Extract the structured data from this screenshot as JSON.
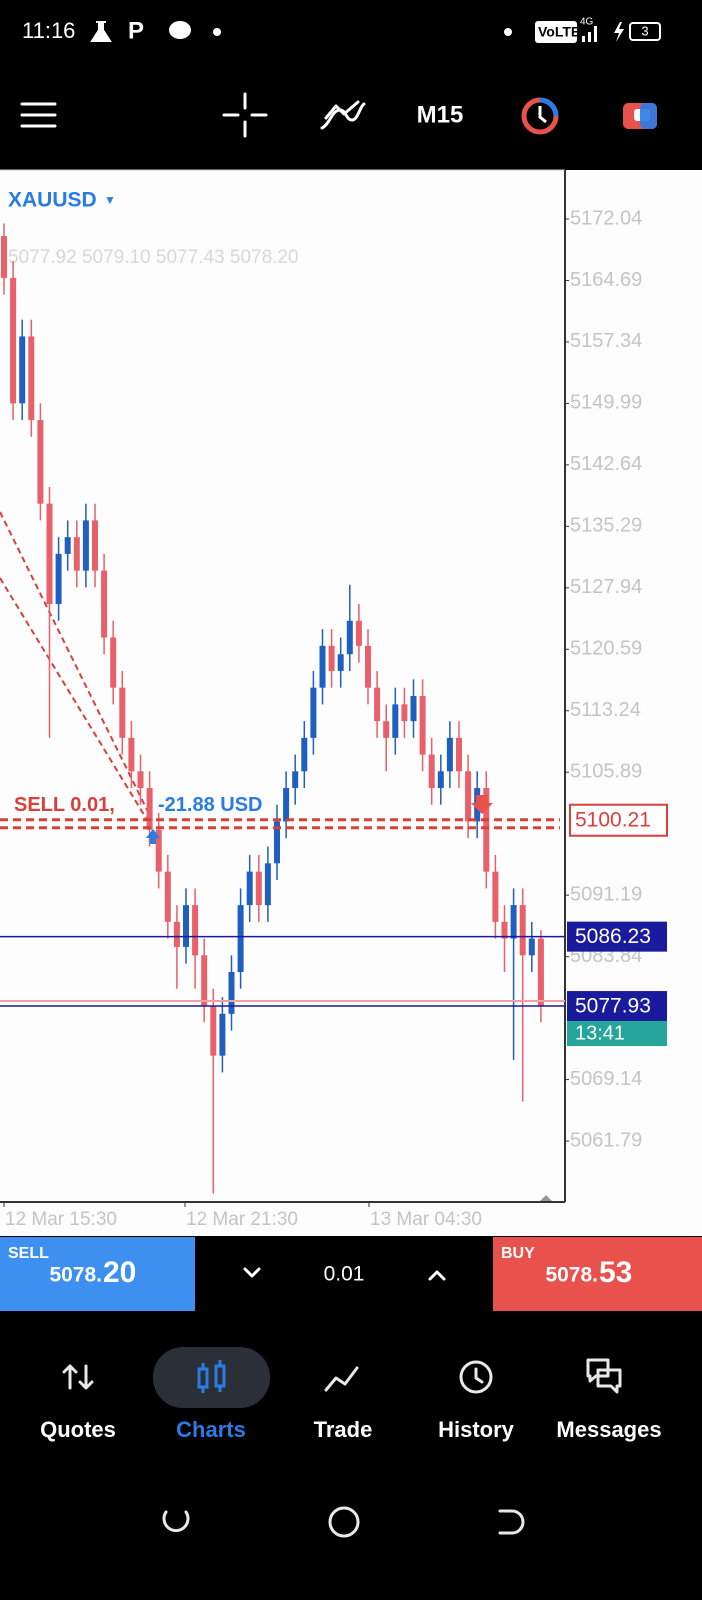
{
  "status_bar": {
    "time": "11:16",
    "network": "VoLTE",
    "generation": "4G",
    "battery": "3"
  },
  "toolbar": {
    "timeframe": "M15"
  },
  "chart_data": {
    "type": "candlestick",
    "symbol": "XAUUSD",
    "ohlc_text": "5077.92 5079.10 5077.43 5078.20",
    "open": [
      5170,
      5165,
      5150,
      5158,
      5148,
      5138,
      5126,
      5132,
      5134,
      5130,
      5136,
      5130,
      5122,
      5116,
      5110,
      5106,
      5104,
      5099,
      5094,
      5088,
      5085,
      5090,
      5084,
      5078,
      5072,
      5077,
      5082,
      5090,
      5094,
      5090,
      5095,
      5100,
      5104,
      5106,
      5110,
      5116,
      5121,
      5118,
      5120,
      5124,
      5121,
      5116,
      5112,
      5110,
      5114,
      5112,
      5115,
      5108,
      5104,
      5106,
      5110,
      5106,
      5100,
      5104,
      5094,
      5088,
      5086,
      5090,
      5084,
      5086
    ],
    "high": [
      5171.5,
      5167,
      5160,
      5160,
      5150,
      5140,
      5134,
      5136,
      5136,
      5138,
      5138,
      5132,
      5124,
      5118,
      5112,
      5108,
      5106,
      5101,
      5096,
      5090,
      5092,
      5092,
      5086,
      5080,
      5079,
      5084,
      5092,
      5096,
      5096,
      5097,
      5102,
      5106,
      5108,
      5112,
      5118,
      5123,
      5123,
      5122,
      5128.3,
      5126,
      5123,
      5118,
      5114,
      5116,
      5116,
      5117,
      5117,
      5110,
      5108,
      5112,
      5112,
      5108,
      5106,
      5106,
      5096,
      5090,
      5092,
      5092,
      5088,
      5087
    ],
    "low": [
      5163,
      5148,
      5148,
      5146,
      5136,
      5110,
      5124,
      5130,
      5128,
      5128,
      5128,
      5120,
      5114,
      5108,
      5104,
      5102,
      5097,
      5092,
      5086,
      5080,
      5083,
      5080,
      5076,
      5055.5,
      5070,
      5075,
      5080,
      5088,
      5088,
      5088,
      5093,
      5098,
      5102,
      5104,
      5108,
      5114,
      5116,
      5116,
      5118,
      5119,
      5114,
      5110,
      5106,
      5108,
      5110,
      5110,
      5106,
      5102,
      5102,
      5104,
      5104,
      5098,
      5098,
      5092,
      5086,
      5082,
      5071.5,
      5066.5,
      5082,
      5076
    ],
    "close": [
      5165,
      5150,
      5158,
      5148,
      5138,
      5126,
      5132,
      5134,
      5130,
      5136,
      5130,
      5122,
      5116,
      5110,
      5106,
      5104,
      5099,
      5094,
      5088,
      5085,
      5090,
      5084,
      5078,
      5072,
      5077,
      5082,
      5090,
      5094,
      5090,
      5095,
      5100,
      5104,
      5106,
      5110,
      5116,
      5121,
      5118,
      5120,
      5124,
      5121,
      5116,
      5112,
      5110,
      5114,
      5112,
      5115,
      5108,
      5104,
      5106,
      5110,
      5106,
      5100,
      5104,
      5094,
      5088,
      5086,
      5090,
      5084,
      5086,
      5077.93
    ],
    "up_color": "#1f5fbf",
    "down_color": "#e8606a",
    "ylim": [
      5054.74,
      5177.9
    ],
    "yticks": [
      5172.04,
      5164.69,
      5157.34,
      5149.99,
      5142.64,
      5135.29,
      5127.94,
      5120.59,
      5113.24,
      5105.89,
      5091.19,
      5083.84,
      5069.14,
      5061.79
    ],
    "x_labels": [
      "12 Mar 15:30",
      "12 Mar 21:30",
      "13 Mar 04:30"
    ],
    "order": {
      "label": "SELL 0.01,",
      "profit": "-21.88 USD",
      "price": 5100.21,
      "color": "#d9403a"
    },
    "levels": [
      {
        "price": 5086.23,
        "color": "#1a1a9c"
      },
      {
        "price": 5077.93,
        "color": "#1a1a9c",
        "timer": "13:41"
      }
    ]
  },
  "trade_bar": {
    "sell_label": "SELL",
    "sell_main": "5078.",
    "sell_big": "20",
    "volume": "0.01",
    "buy_label": "BUY",
    "buy_main": "5078.",
    "buy_big": "53"
  },
  "nav": [
    "Quotes",
    "Charts",
    "Trade",
    "History",
    "Messages"
  ]
}
